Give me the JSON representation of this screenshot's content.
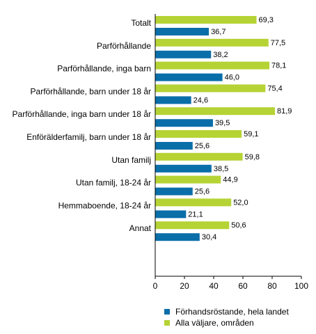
{
  "chart_data": {
    "type": "bar",
    "orientation": "horizontal",
    "categories": [
      "Totalt",
      "Parförhållande",
      "Parförhållande, inga barn",
      "Parförhållande, barn under 18 år",
      "Parförhållande, inga barn under 18 år",
      "Enförälderfamilj, barn under 18 år",
      "Utan familj",
      "Utan familj, 18-24 år",
      "Hemmaboende, 18-24 år",
      "Annat"
    ],
    "series": [
      {
        "name": "Alla väljare, områden",
        "color": "#b5d334",
        "values": [
          69.3,
          77.5,
          78.1,
          75.4,
          81.9,
          59.1,
          59.8,
          44.9,
          52.0,
          50.6
        ],
        "labels": [
          "69,3",
          "77,5",
          "78,1",
          "75,4",
          "81,9",
          "59,1",
          "59,8",
          "44,9",
          "52,0",
          "50,6"
        ]
      },
      {
        "name": "Förhandsröstande, hela landet",
        "color": "#0a6ea9",
        "values": [
          36.7,
          38.2,
          46.0,
          24.6,
          39.5,
          25.6,
          38.5,
          25.6,
          21.1,
          30.4
        ],
        "labels": [
          "36,7",
          "38,2",
          "46,0",
          "24,6",
          "39,5",
          "25,6",
          "38,5",
          "25,6",
          "21,1",
          "30,4"
        ]
      }
    ],
    "xlim": [
      0,
      100
    ],
    "xticks": [
      "0",
      "20",
      "40",
      "60",
      "80",
      "100"
    ],
    "grid": false,
    "legend_position": "bottom",
    "legend": [
      {
        "label": "Förhandsröstande, hela landet",
        "color": "#0a6ea9"
      },
      {
        "label": "Alla väljare, områden",
        "color": "#b5d334"
      }
    ]
  }
}
